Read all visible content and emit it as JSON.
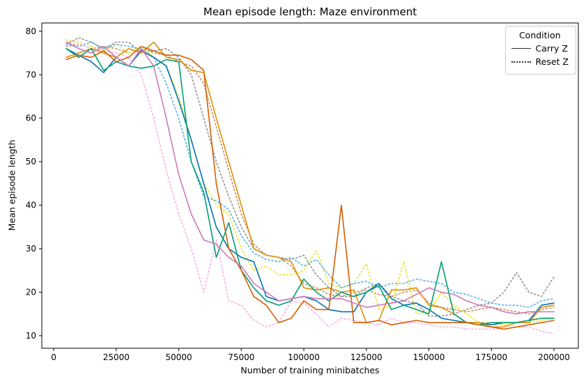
{
  "chart_data": {
    "type": "line",
    "title": "Mean episode length: Maze environment",
    "xlabel": "Number of training minibatches",
    "ylabel": "Mean episode length",
    "xlim": [
      -4750,
      209750
    ],
    "ylim": [
      7.1,
      81.9
    ],
    "xticks": [
      0,
      25000,
      50000,
      75000,
      100000,
      125000,
      150000,
      175000,
      200000
    ],
    "yticks": [
      10,
      20,
      30,
      40,
      50,
      60,
      70,
      80
    ],
    "grid": false,
    "legend": {
      "title": "Condition",
      "position": "upper right",
      "entries": [
        {
          "label": "Carry Z",
          "style": "solid"
        },
        {
          "label": "Reset Z",
          "style": "dotted"
        }
      ]
    },
    "x": [
      5000,
      10000,
      15000,
      20000,
      25000,
      30000,
      35000,
      40000,
      45000,
      50000,
      55000,
      60000,
      65000,
      70000,
      75000,
      80000,
      85000,
      90000,
      95000,
      100000,
      105000,
      110000,
      115000,
      120000,
      125000,
      130000,
      135000,
      140000,
      145000,
      150000,
      155000,
      160000,
      165000,
      170000,
      175000,
      180000,
      185000,
      190000,
      195000,
      200000
    ],
    "series": [
      {
        "name": "reset-tan",
        "condition": "Reset Z",
        "color": "#ca9161",
        "values": [
          76.5,
          77,
          76,
          76.5,
          76,
          75,
          76.5,
          75,
          74.5,
          73,
          72,
          68,
          58,
          48,
          38,
          31,
          28.5,
          28,
          26,
          22,
          21,
          19.5,
          19,
          20,
          20.5,
          19.5,
          19,
          20,
          20.5,
          17.5,
          16.5,
          16,
          15.5,
          16,
          16.5,
          16,
          15.5,
          15,
          16,
          16.5
        ]
      },
      {
        "name": "reset-lightpink",
        "condition": "Reset Z",
        "color": "#fbafe4",
        "values": [
          77.5,
          77,
          76,
          75.5,
          75,
          74,
          70,
          60,
          48,
          38,
          30,
          20,
          32,
          18,
          17,
          13.5,
          12,
          13,
          18,
          17.5,
          15,
          12,
          14,
          13.5,
          13,
          12.5,
          14,
          13,
          13,
          12.5,
          12,
          12,
          11.5,
          11.5,
          11.5,
          11.5,
          12,
          12,
          11,
          10.5
        ]
      },
      {
        "name": "reset-gray",
        "condition": "Reset Z",
        "color": "#949494",
        "values": [
          77,
          78.5,
          77.5,
          76,
          77.5,
          77.5,
          75,
          75.5,
          76,
          74,
          70,
          60,
          50,
          42,
          35,
          30,
          28.5,
          28,
          27.5,
          28.5,
          24,
          21,
          19,
          19,
          21,
          22,
          19,
          18,
          17.5,
          14.5,
          14.5,
          15,
          16,
          17,
          17.5,
          20,
          24.5,
          20,
          19,
          23.5
        ]
      },
      {
        "name": "reset-yellow",
        "condition": "Reset Z",
        "color": "#ece133",
        "values": [
          78,
          77.5,
          76.5,
          75.5,
          77,
          75,
          76.5,
          74,
          72,
          65,
          55,
          45,
          40,
          38,
          30,
          25,
          26,
          24,
          24,
          25,
          29.5,
          22,
          21,
          22,
          26.5,
          16,
          17,
          27,
          15,
          15.5,
          20,
          17,
          15,
          13,
          13,
          12.5,
          13,
          13,
          13.5,
          14
        ]
      },
      {
        "name": "reset-skyblue",
        "condition": "Reset Z",
        "color": "#56b4e9",
        "values": [
          77,
          76.5,
          77.5,
          76,
          77,
          76.5,
          76,
          74,
          68,
          60,
          50,
          42,
          41,
          39,
          33,
          29,
          27.5,
          27,
          28,
          26,
          27.5,
          24,
          21,
          22,
          22.5,
          21,
          22,
          22,
          23,
          22.5,
          22,
          20,
          19.5,
          18.5,
          17.5,
          17,
          17,
          16.5,
          18,
          18.5
        ]
      },
      {
        "name": "carry-blue",
        "condition": "Carry Z",
        "color": "#0173b2",
        "values": [
          76,
          74.5,
          73,
          70.5,
          74,
          72,
          75.5,
          74,
          72,
          64,
          55,
          45,
          35,
          30,
          28,
          27,
          19,
          18,
          18.5,
          19,
          18,
          16,
          15.5,
          15.5,
          20,
          22,
          18.5,
          17,
          17.5,
          16,
          14,
          13.5,
          13,
          13,
          12.5,
          13,
          13,
          13.5,
          17,
          17.5
        ]
      },
      {
        "name": "carry-orange",
        "condition": "Carry Z",
        "color": "#de8f05",
        "values": [
          74,
          75,
          76,
          75,
          74,
          76,
          75,
          77.5,
          74,
          73.5,
          71,
          70.5,
          60,
          50,
          40,
          30,
          28.5,
          28,
          27,
          21,
          20.5,
          21,
          20,
          20.5,
          13,
          13.5,
          20.5,
          20.5,
          21,
          17,
          16.5,
          15,
          13,
          13,
          12,
          12,
          13,
          13,
          16.5,
          17
        ]
      },
      {
        "name": "carry-teal",
        "condition": "Carry Z",
        "color": "#029e73",
        "values": [
          76,
          74,
          76,
          71,
          73,
          72,
          71.5,
          72,
          73.5,
          73,
          50,
          43,
          28,
          36,
          25,
          21,
          18,
          17,
          18,
          23,
          20,
          18,
          20,
          19,
          20,
          21.5,
          16,
          17,
          16,
          15,
          27,
          15,
          13,
          12.5,
          13,
          13,
          13,
          13.5,
          14,
          14
        ]
      },
      {
        "name": "carry-vermillion",
        "condition": "Carry Z",
        "color": "#d55e00",
        "values": [
          73.5,
          74.5,
          74,
          75.5,
          73,
          74,
          76.5,
          75.5,
          74.5,
          74.5,
          73.5,
          71,
          45,
          30,
          25,
          19,
          17,
          13,
          14,
          18,
          16,
          16,
          40,
          13,
          13,
          13.5,
          12.5,
          13,
          13.5,
          13,
          13,
          13,
          13,
          12.5,
          12,
          11.5,
          12,
          12.5,
          13,
          13.5
        ]
      },
      {
        "name": "carry-pink",
        "condition": "Carry Z",
        "color": "#cc78bc",
        "values": [
          77.5,
          76,
          75,
          76.5,
          74,
          72,
          76,
          72,
          60,
          47,
          38,
          32,
          31,
          28,
          26,
          22,
          20,
          18,
          18.5,
          19,
          18.5,
          18.5,
          18.5,
          17.5,
          16.5,
          17,
          17.5,
          18,
          19.5,
          21,
          20,
          19.5,
          18,
          17,
          16.5,
          15.5,
          15,
          15.5,
          15.5,
          15.5
        ]
      }
    ]
  }
}
